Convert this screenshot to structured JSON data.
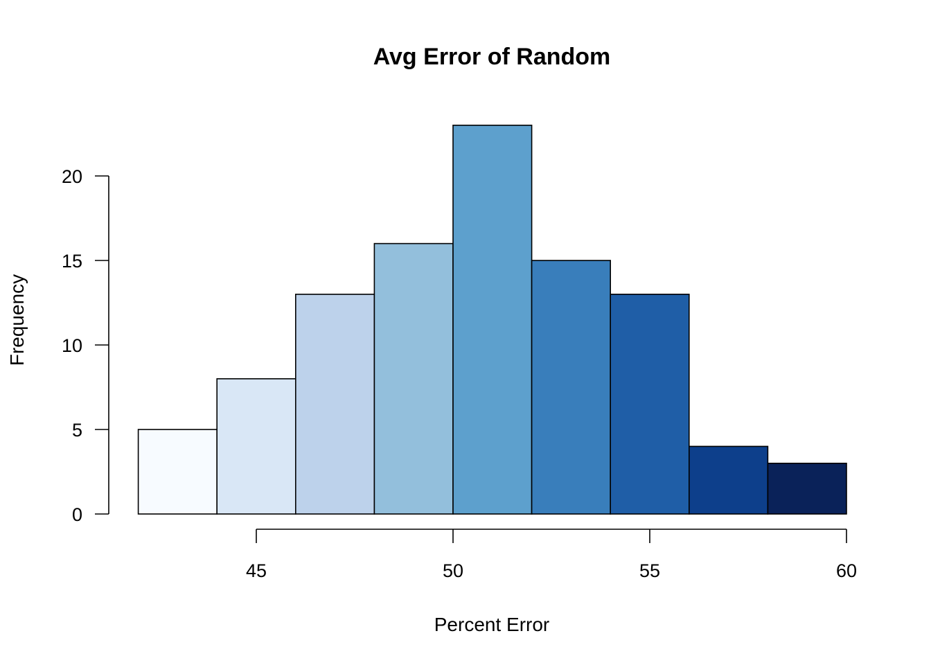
{
  "chart_data": {
    "type": "bar",
    "subtype": "histogram",
    "title": "Avg Error of Random",
    "xlabel": "Percent Error",
    "ylabel": "Frequency",
    "bin_edges": [
      42,
      44,
      46,
      48,
      50,
      52,
      54,
      56,
      58,
      60
    ],
    "values": [
      5,
      8,
      13,
      16,
      23,
      15,
      13,
      4,
      3
    ],
    "colors": [
      "#F7FBFF",
      "#D9E7F6",
      "#BDD2EB",
      "#93BFDC",
      "#5DA0CD",
      "#397EBB",
      "#1F5EA7",
      "#0D3F8B",
      "#0A2259"
    ],
    "xlim": [
      42,
      60
    ],
    "ylim": [
      0,
      23
    ],
    "x_ticks": [
      45,
      50,
      55,
      60
    ],
    "y_ticks": [
      0,
      5,
      10,
      15,
      20
    ],
    "grid": false,
    "legend": "none"
  }
}
